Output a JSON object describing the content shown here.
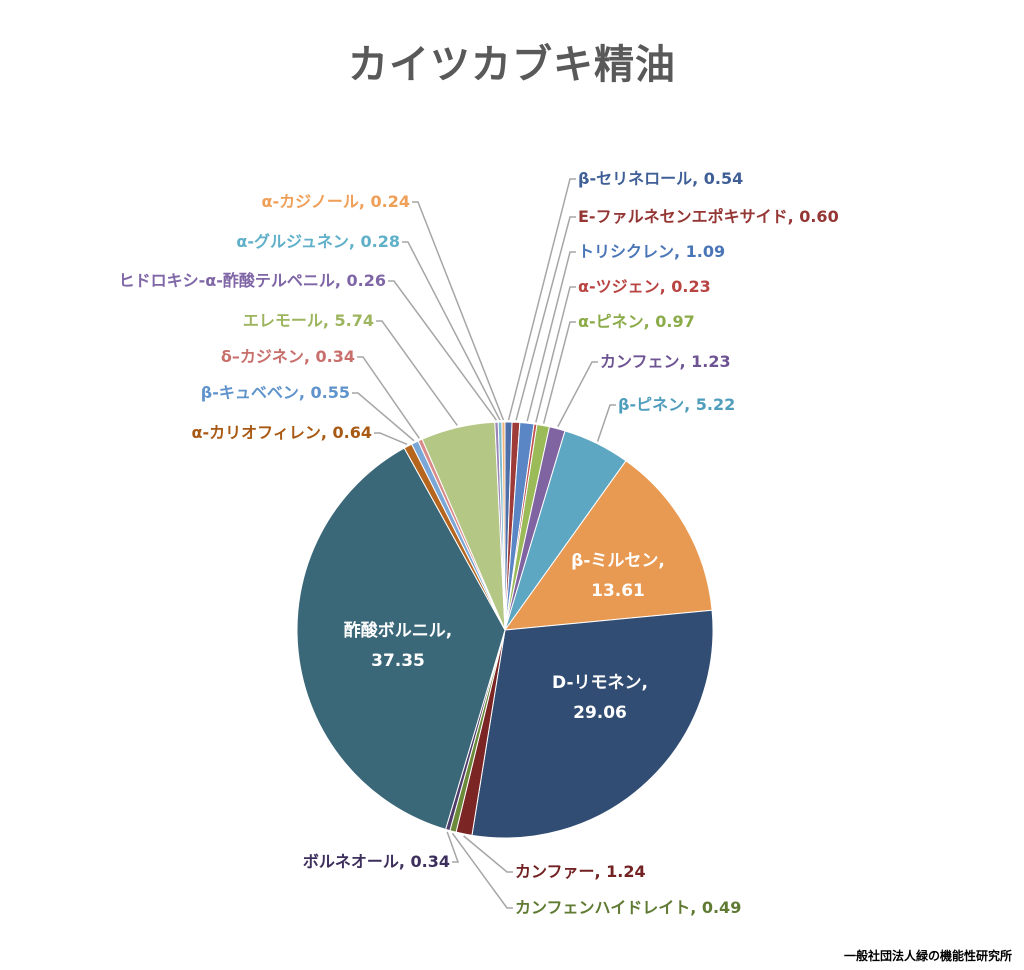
{
  "title": "カイツカブキ精油",
  "credit": "一般社団法人緑の機能性研究所",
  "chart_data": {
    "type": "pie",
    "title": "カイツカブキ精油",
    "start_angle_deg": 0,
    "direction": "clockwise",
    "slices": [
      {
        "label": "β-セリネロール",
        "value": 0.54,
        "color": "#4e6fa8"
      },
      {
        "label": "E-ファルネセンエポキサイド",
        "value": 0.6,
        "color": "#9e3b39"
      },
      {
        "label": "トリシクレン",
        "value": 1.09,
        "color": "#5b86c5"
      },
      {
        "label": "α-ツジェン",
        "value": 0.23,
        "color": "#c0504d"
      },
      {
        "label": "α-ピネン",
        "value": 0.97,
        "color": "#9bbb59"
      },
      {
        "label": "カンフェン",
        "value": 1.23,
        "color": "#8064a2"
      },
      {
        "label": "β-ピネン",
        "value": 5.22,
        "color": "#5ea7c3"
      },
      {
        "label": "β-ミルセン",
        "value": 13.61,
        "color": "#e99a52"
      },
      {
        "label": "D-リモネン",
        "value": 29.06,
        "color": "#324d73"
      },
      {
        "label": "カンファー",
        "value": 1.24,
        "color": "#7b2525"
      },
      {
        "label": "カンフェンハイドレイト",
        "value": 0.49,
        "color": "#6b8a3a"
      },
      {
        "label": "ボルネオール",
        "value": 0.34,
        "color": "#4e3d6b"
      },
      {
        "label": "酢酸ボルニル",
        "value": 37.35,
        "color": "#3b6878"
      },
      {
        "label": "α-カリオフィレン",
        "value": 0.64,
        "color": "#b5651d"
      },
      {
        "label": "β-キュベベン",
        "value": 0.55,
        "color": "#7ba7d6"
      },
      {
        "label": "δ-カジネン",
        "value": 0.34,
        "color": "#d98b89"
      },
      {
        "label": "エレモール",
        "value": 5.74,
        "color": "#b5c784"
      },
      {
        "label": "ヒドロキシ-α-酢酸テルペニル",
        "value": 0.26,
        "color": "#9a86b8"
      },
      {
        "label": "α-グルジュネン",
        "value": 0.28,
        "color": "#7cbccf"
      },
      {
        "label": "α-カジノール",
        "value": 0.24,
        "color": "#f0b37d"
      }
    ],
    "label_colors": {
      "β-セリネロール": "#3f5f96",
      "E-ファルネセンエポキサイド": "#943634",
      "トリシクレン": "#4a76b8",
      "α-ツジェン": "#b84542",
      "α-ピネン": "#8bab49",
      "カンフェン": "#6f5494",
      "β-ピネン": "#4f9dbc",
      "カンファー": "#722222",
      "カンフェンハイドレイト": "#5f7a32",
      "ボルネオール": "#3d2f5c",
      "α-カリオフィレン": "#a85a15",
      "β-キュベベン": "#5f93cb",
      "δ-カジネン": "#c86f6c",
      "エレモール": "#9db55e",
      "ヒドロキシ-α-酢酸テルペニル": "#7f66a6",
      "α-グルジュネン": "#5fb0c8",
      "α-カジノール": "#ef9f57"
    },
    "outside_labels": {
      "β-セリネロール": "β-セリネロール, 0.54",
      "E-ファルネセンエポキサイド": "E-ファルネセンエポキサイド, 0.60",
      "トリシクレン": "トリシクレン, 1.09",
      "α-ツジェン": "α-ツジェン, 0.23",
      "α-ピネン": "α-ピネン, 0.97",
      "カンフェン": "カンフェン, 1.23",
      "β-ピネン": "β-ピネン, 5.22",
      "カンファー": "カンファー, 1.24",
      "カンフェンハイドレイト": "カンフェンハイドレイト, 0.49",
      "ボルネオール": "ボルネオール, 0.34",
      "α-カリオフィレン": "α-カリオフィレン, 0.64",
      "β-キュベベン": "β-キュベベン, 0.55",
      "δ-カジネン": "δ–カジネン, 0.34",
      "エレモール": "エレモール, 5.74",
      "ヒドロキシ-α-酢酸テルペニル": "ヒドロキシ-α-酢酸テルペニル, 0.26",
      "α-グルジュネン": "α-グルジュネン, 0.28",
      "α-カジノール": "α-カジノール, 0.24"
    },
    "inside_labels": {
      "β-ミルセン": [
        "β-ミルセン,",
        "13.61"
      ],
      "D-リモネン": [
        "D-リモネン,",
        "29.06"
      ],
      "酢酸ボルニル": [
        "酢酸ボルニル,",
        "37.35"
      ]
    }
  }
}
